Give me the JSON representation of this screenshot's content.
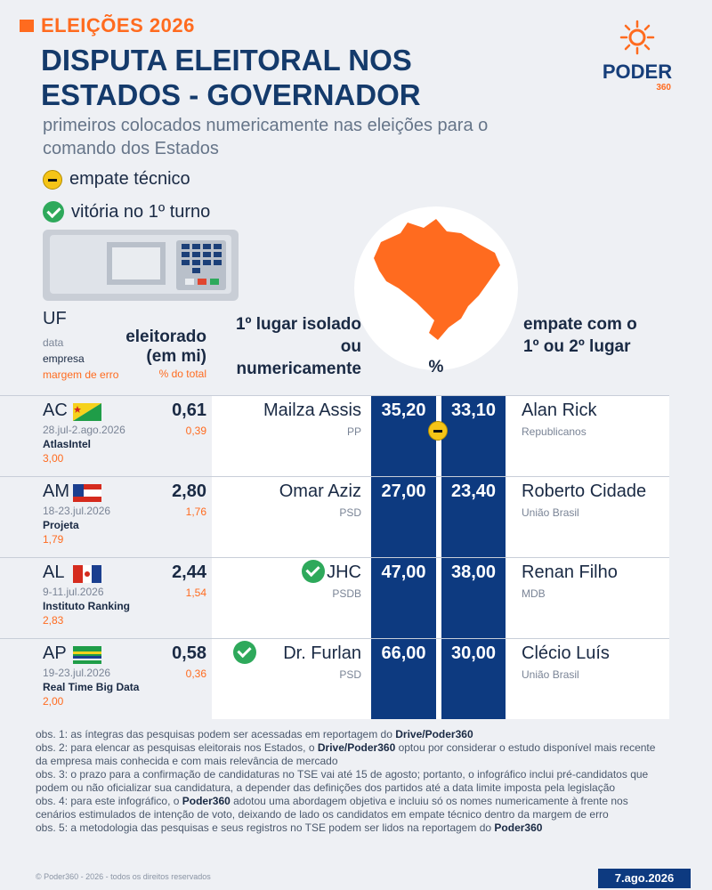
{
  "header": {
    "kicker": "ELEIÇÕES 2026",
    "title": "DISPUTA ELEITORAL NOS ESTADOS - GOVERNADOR",
    "subtitle": "primeiros colocados numericamente nas eleições para o comando dos Estados"
  },
  "legend": {
    "tie": "empate técnico",
    "win": "vitória no 1º turno"
  },
  "logo": {
    "word": "PODER",
    "sub": "360"
  },
  "columns": {
    "uf": "UF",
    "data": "data",
    "empresa": "empresa",
    "margem": "margem de erro",
    "eleitorado": "eleitorado (em mi)",
    "pct_total": "% do total",
    "first": "1º lugar isolado ou numericamente",
    "pct": "%",
    "tie": "empate com o 1º ou 2º lugar"
  },
  "rows": [
    {
      "uf": "AC",
      "data": "28.jul-2.ago.2026",
      "empresa": "AtlasIntel",
      "margem": "3,00",
      "eleitorado": "0,61",
      "pct_total": "0,39",
      "c1": "Mailza Assis",
      "c1_party": "PP",
      "v1": "35,20",
      "v2": "33,10",
      "c2": "Alan Rick",
      "c2_party": "Republicanos",
      "tie": true,
      "win": false
    },
    {
      "uf": "AM",
      "data": "18-23.jul.2026",
      "empresa": "Projeta",
      "margem": "1,79",
      "eleitorado": "2,80",
      "pct_total": "1,76",
      "c1": "Omar Aziz",
      "c1_party": "PSD",
      "v1": "27,00",
      "v2": "23,40",
      "c2": "Roberto Cidade",
      "c2_party": "União Brasil",
      "tie": false,
      "win": false
    },
    {
      "uf": "AL",
      "data": "9-11.jul.2026",
      "empresa": "Instituto Ranking",
      "margem": "2,83",
      "eleitorado": "2,44",
      "pct_total": "1,54",
      "c1": "JHC",
      "c1_party": "PSDB",
      "v1": "47,00",
      "v2": "38,00",
      "c2": "Renan Filho",
      "c2_party": "MDB",
      "tie": false,
      "win": true
    },
    {
      "uf": "AP",
      "data": "19-23.jul.2026",
      "empresa": "Real Time Big Data",
      "margem": "2,00",
      "eleitorado": "0,58",
      "pct_total": "0,36",
      "c1": "Dr. Furlan",
      "c1_party": "PSD",
      "v1": "66,00",
      "v2": "30,00",
      "c2": "Clécio Luís",
      "c2_party": "União Brasil",
      "tie": false,
      "win": true
    }
  ],
  "notes": {
    "n1a": "obs. 1: as íntegras das pesquisas podem ser acessadas em reportagem do ",
    "n1b": "Drive/Poder360",
    "n2a": "obs. 2: para elencar as pesquisas eleitorais nos Estados, o ",
    "n2b": "Drive/Poder360",
    "n2c": " optou por considerar o estudo disponível mais recente da empresa mais conhecida e com mais relevância de mercado",
    "n3": "obs. 3: o prazo para a confirmação de candidaturas no TSE vai até 15 de agosto; portanto, o infográfico inclui pré-candidatos que podem ou não oficializar sua candidatura, a depender das definições dos partidos até a data limite imposta pela legislação",
    "n4a": "obs. 4: para este infográfico, o ",
    "n4b": "Poder360",
    "n4c": " adotou uma abordagem objetiva e incluiu só os nomes numericamente à frente nos cenários estimulados de intenção de voto, deixando de lado os candidatos em empate técnico dentro da margem de erro",
    "n5a": "obs. 5: a metodologia das pesquisas e seus registros no TSE podem ser lidos na reportagem do ",
    "n5b": "Poder360"
  },
  "footer": {
    "copyright": "© Poder360 - 2026 - todos os direitos reservados",
    "date": "7.ago.2026"
  },
  "colors": {
    "accent": "#ff6b1f",
    "navy": "#0d3a80",
    "title": "#143a6b",
    "win_green": "#2ea95b",
    "tie_yellow": "#f5c417"
  }
}
